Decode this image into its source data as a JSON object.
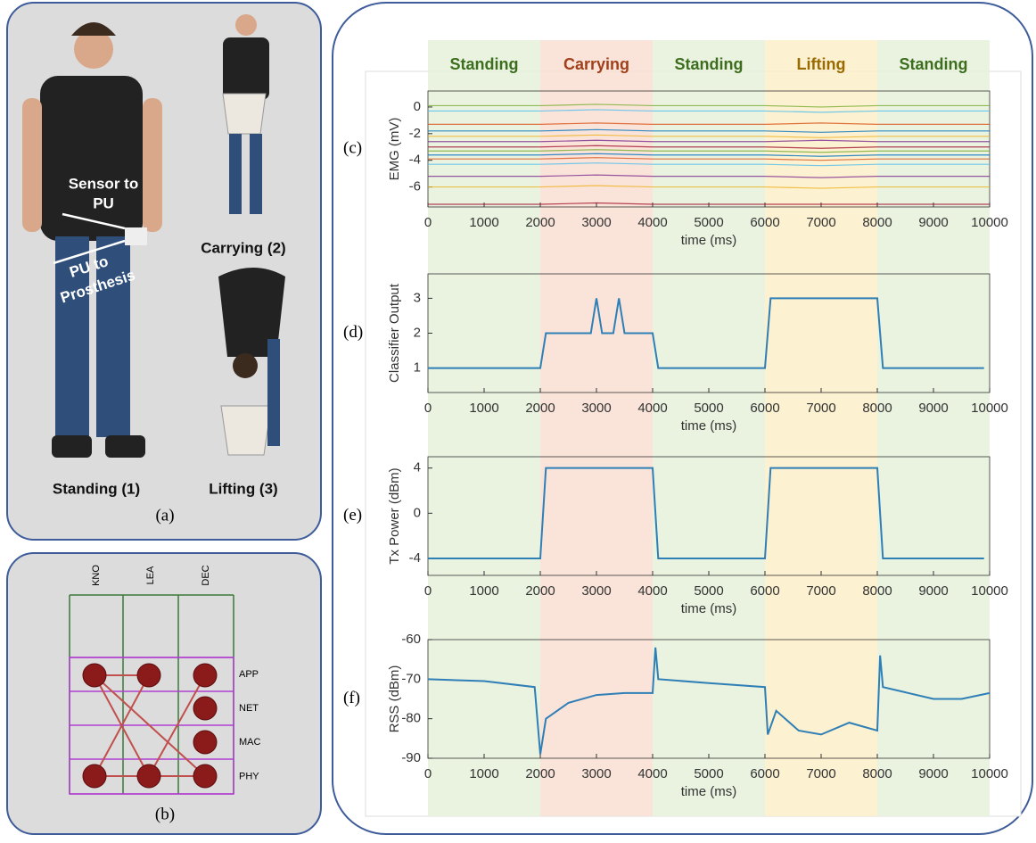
{
  "panel_labels": {
    "a": "(a)",
    "b": "(b)"
  },
  "photos": {
    "standing": "Standing (1)",
    "carrying": "Carrying (2)",
    "lifting": "Lifting (3)",
    "sensor_to_pu": [
      "Sensor to",
      "PU"
    ],
    "pu_to_prosthesis": [
      "PU to",
      "Prosthesis"
    ]
  },
  "layers_grid": {
    "columns": [
      "KNO",
      "LEA",
      "DEC"
    ],
    "rows": [
      "APP",
      "NET",
      "MAC",
      "PHY"
    ]
  },
  "phases": [
    {
      "label": "Standing",
      "start": 0,
      "end": 2000,
      "color": "#e6f0da",
      "text_color": "#3c6e1e"
    },
    {
      "label": "Carrying",
      "start": 2000,
      "end": 4000,
      "color": "#f9dfd2",
      "text_color": "#a0401a"
    },
    {
      "label": "Standing",
      "start": 4000,
      "end": 6000,
      "color": "#e6f0da",
      "text_color": "#3c6e1e"
    },
    {
      "label": "Lifting",
      "start": 6000,
      "end": 8000,
      "color": "#fcefc8",
      "text_color": "#9a6a00"
    },
    {
      "label": "Standing",
      "start": 8000,
      "end": 10000,
      "color": "#e6f0da",
      "text_color": "#3c6e1e"
    }
  ],
  "chart_data": [
    {
      "type": "line",
      "label": "(c)",
      "xlabel": "time (ms)",
      "ylabel": "EMG (mV)",
      "xlim": [
        0,
        10000
      ],
      "xticks": [
        0,
        1000,
        2000,
        3000,
        4000,
        5000,
        6000,
        7000,
        8000,
        9000,
        10000
      ],
      "ylim": [
        -7.5,
        1.2
      ],
      "yticks": [
        -6,
        -4,
        -2,
        0
      ],
      "x": [
        0,
        1000,
        2000,
        3000,
        4000,
        5000,
        6000,
        7000,
        8000,
        9000,
        10000
      ],
      "series": [
        {
          "color": "#77AC30",
          "values": [
            0.1,
            0.1,
            0.1,
            0.2,
            0.1,
            0.1,
            0.1,
            0.0,
            0.1,
            0.1,
            0.1
          ]
        },
        {
          "color": "#4DBEEE",
          "values": [
            -0.3,
            -0.3,
            -0.3,
            -0.2,
            -0.3,
            -0.3,
            -0.3,
            -0.4,
            -0.3,
            -0.3,
            -0.3
          ]
        },
        {
          "color": "#D95319",
          "values": [
            -1.3,
            -1.3,
            -1.3,
            -1.2,
            -1.3,
            -1.3,
            -1.3,
            -1.2,
            -1.3,
            -1.3,
            -1.3
          ]
        },
        {
          "color": "#0072BD",
          "values": [
            -1.8,
            -1.8,
            -1.8,
            -1.7,
            -1.8,
            -1.8,
            -1.8,
            -1.9,
            -1.8,
            -1.8,
            -1.8
          ]
        },
        {
          "color": "#EDB120",
          "values": [
            -2.2,
            -2.2,
            -2.2,
            -2.1,
            -2.2,
            -2.2,
            -2.2,
            -2.3,
            -2.2,
            -2.2,
            -2.2
          ]
        },
        {
          "color": "#7E2F8E",
          "values": [
            -2.6,
            -2.6,
            -2.6,
            -2.5,
            -2.6,
            -2.6,
            -2.6,
            -2.5,
            -2.6,
            -2.6,
            -2.6
          ]
        },
        {
          "color": "#A2142F",
          "values": [
            -3.0,
            -3.0,
            -3.0,
            -2.9,
            -3.0,
            -3.0,
            -3.0,
            -3.1,
            -3.0,
            -3.0,
            -3.0
          ]
        },
        {
          "color": "#77AC30",
          "values": [
            -3.3,
            -3.3,
            -3.3,
            -3.2,
            -3.3,
            -3.3,
            -3.3,
            -3.4,
            -3.3,
            -3.3,
            -3.3
          ]
        },
        {
          "color": "#0072BD",
          "values": [
            -3.6,
            -3.6,
            -3.6,
            -3.5,
            -3.6,
            -3.6,
            -3.6,
            -3.7,
            -3.6,
            -3.6,
            -3.6
          ]
        },
        {
          "color": "#D95319",
          "values": [
            -3.9,
            -3.9,
            -3.9,
            -3.8,
            -3.9,
            -3.9,
            -3.9,
            -4.0,
            -3.9,
            -3.9,
            -3.9
          ]
        },
        {
          "color": "#4DBEEE",
          "values": [
            -4.3,
            -4.3,
            -4.3,
            -4.2,
            -4.3,
            -4.3,
            -4.3,
            -4.4,
            -4.3,
            -4.3,
            -4.3
          ]
        },
        {
          "color": "#7E2F8E",
          "values": [
            -5.2,
            -5.2,
            -5.2,
            -5.1,
            -5.2,
            -5.2,
            -5.2,
            -5.3,
            -5.2,
            -5.2,
            -5.2
          ]
        },
        {
          "color": "#EDB120",
          "values": [
            -6.0,
            -6.0,
            -6.0,
            -5.9,
            -6.0,
            -6.0,
            -6.0,
            -6.1,
            -6.0,
            -6.0,
            -6.0
          ]
        },
        {
          "color": "#A2142F",
          "values": [
            -7.3,
            -7.3,
            -7.3,
            -7.2,
            -7.3,
            -7.3,
            -7.3,
            -7.3,
            -7.3,
            -7.3,
            -7.3
          ]
        }
      ]
    },
    {
      "type": "line",
      "label": "(d)",
      "xlabel": "time (ms)",
      "ylabel": "Classifier Output",
      "xlim": [
        0,
        10000
      ],
      "xticks": [
        0,
        1000,
        2000,
        3000,
        4000,
        5000,
        6000,
        7000,
        8000,
        9000,
        10000
      ],
      "ylim": [
        0.3,
        3.7
      ],
      "yticks": [
        1,
        2,
        3
      ],
      "x": [
        0,
        2000,
        2100,
        2900,
        3000,
        3100,
        3300,
        3400,
        3500,
        4000,
        4100,
        6000,
        6100,
        8000,
        8100,
        9900
      ],
      "series": [
        {
          "color": "#2f7fb7",
          "values": [
            1,
            1,
            2,
            2,
            3,
            2,
            2,
            3,
            2,
            2,
            1,
            1,
            3,
            3,
            1,
            1
          ]
        }
      ]
    },
    {
      "type": "line",
      "label": "(e)",
      "xlabel": "time (ms)",
      "ylabel": "Tx Power (dBm)",
      "xlim": [
        0,
        10000
      ],
      "xticks": [
        0,
        1000,
        2000,
        3000,
        4000,
        5000,
        6000,
        7000,
        8000,
        9000,
        10000
      ],
      "ylim": [
        -5.5,
        5
      ],
      "yticks": [
        -4,
        0,
        4
      ],
      "x": [
        0,
        2000,
        2100,
        4000,
        4100,
        6000,
        6100,
        8000,
        8100,
        9900
      ],
      "series": [
        {
          "color": "#2f7fb7",
          "values": [
            -4,
            -4,
            4,
            4,
            -4,
            -4,
            4,
            4,
            -4,
            -4
          ]
        }
      ]
    },
    {
      "type": "line",
      "label": "(f)",
      "xlabel": "time (ms)",
      "ylabel": "RSS (dBm)",
      "xlim": [
        0,
        10000
      ],
      "xticks": [
        0,
        1000,
        2000,
        3000,
        4000,
        5000,
        6000,
        7000,
        8000,
        9000,
        10000
      ],
      "ylim": [
        -90,
        -60
      ],
      "yticks": [
        -90,
        -80,
        -70,
        -60
      ],
      "x": [
        0,
        1000,
        1900,
        2000,
        2100,
        2500,
        3000,
        3500,
        4000,
        4050,
        4100,
        5000,
        6000,
        6050,
        6200,
        6600,
        7000,
        7500,
        8000,
        8050,
        8100,
        9000,
        9500,
        10000
      ],
      "series": [
        {
          "color": "#2f7fb7",
          "values": [
            -70,
            -70.5,
            -72,
            -89,
            -80,
            -76,
            -74,
            -73.5,
            -73.5,
            -62,
            -70,
            -71,
            -72,
            -84,
            -78,
            -83,
            -84,
            -81,
            -83,
            -64,
            -72,
            -75,
            -75,
            -73.5
          ]
        }
      ]
    }
  ]
}
